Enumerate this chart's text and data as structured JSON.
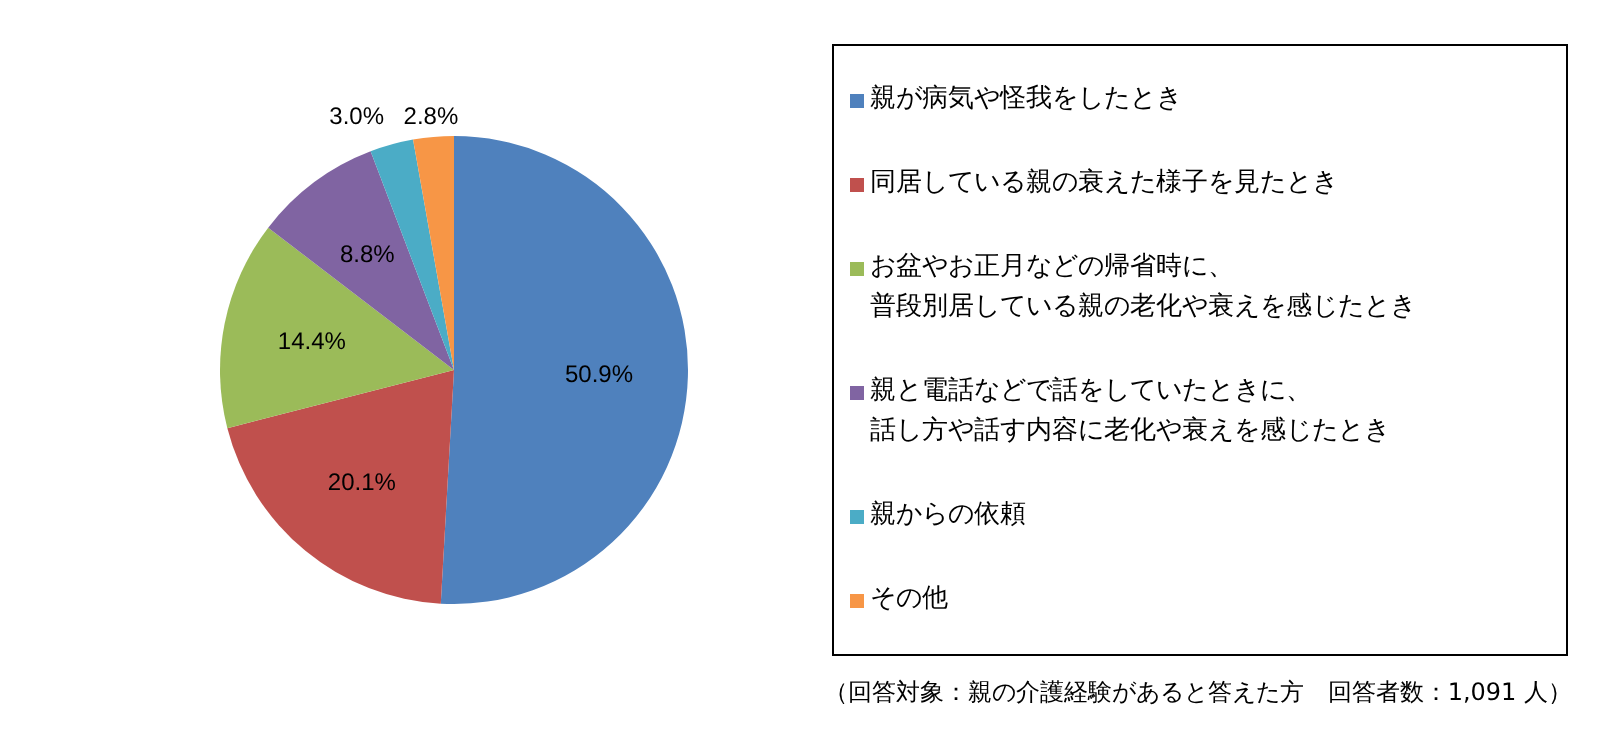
{
  "chart_data": {
    "type": "pie",
    "categories": [
      "親が病気や怪我をしたとき",
      "同居している親の衰えた様子を見たとき",
      "お盆やお正月などの帰省時に、普段別居している親の老化や衰えを感じたとき",
      "親と電話などで話をしていたときに、話し方や話す内容に老化や衰えを感じたとき",
      "親からの依頼",
      "その他"
    ],
    "values": [
      50.9,
      20.1,
      14.4,
      8.8,
      3.0,
      2.8
    ],
    "colors": [
      "#4f81bd",
      "#c0504d",
      "#9bbb59",
      "#8064a2",
      "#4bacc6",
      "#f79646"
    ],
    "value_labels": [
      "50.9%",
      "20.1%",
      "14.4%",
      "8.8%",
      "3.0%",
      "2.8%"
    ],
    "legend": "right",
    "annotations": [
      "（回答対象：親の介護経験があると答えた方　回答者数：1,091 人）"
    ]
  }
}
